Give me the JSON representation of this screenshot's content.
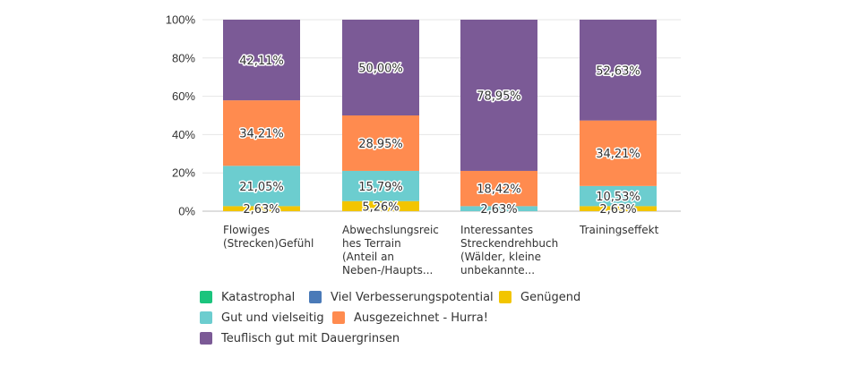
{
  "chart_data": {
    "type": "bar",
    "stacked": true,
    "categories": [
      [
        "Flowiges",
        "(Strecken)Gefühl"
      ],
      [
        "Abwechslungsreic",
        "hes Terrain",
        "(Anteil an",
        "Neben-/Haupts..."
      ],
      [
        "Interessantes",
        "Streckendrehbuch",
        "(Wälder, kleine",
        "unbekannte..."
      ],
      [
        "Trainingseffekt"
      ]
    ],
    "y_ticks": [
      "0%",
      "20%",
      "40%",
      "60%",
      "80%",
      "100%"
    ],
    "ylim": [
      0,
      100
    ],
    "grid": true,
    "legend_position": "bottom",
    "series": [
      {
        "name": "Katastrophal",
        "color": "#1bc47d",
        "values": [
          0,
          0,
          0,
          0
        ],
        "labels": [
          "",
          "",
          "",
          ""
        ]
      },
      {
        "name": "Viel Verbesserungspotential",
        "color": "#4a7ab8",
        "values": [
          0,
          0,
          0,
          0
        ],
        "labels": [
          "",
          "",
          "",
          ""
        ]
      },
      {
        "name": "Genügend",
        "color": "#f2c500",
        "values": [
          2.63,
          5.26,
          0,
          2.63
        ],
        "labels": [
          "2,63%",
          "5,26%",
          "",
          "2,63%"
        ]
      },
      {
        "name": "Gut und vielseitig",
        "color": "#6ccdcf",
        "values": [
          21.05,
          15.79,
          2.63,
          10.53
        ],
        "labels": [
          "21,05%",
          "15,79%",
          "2,63%",
          "10,53%"
        ]
      },
      {
        "name": "Ausgezeichnet - Hurra!",
        "color": "#ff8b4f",
        "values": [
          34.21,
          28.95,
          18.42,
          34.21
        ],
        "labels": [
          "34,21%",
          "28,95%",
          "18,42%",
          "34,21%"
        ]
      },
      {
        "name": "Teuflisch gut mit Dauergrinsen",
        "color": "#7b5a96",
        "values": [
          42.11,
          50.0,
          78.95,
          52.63
        ],
        "labels": [
          "42,11%",
          "50,00%",
          "78,95%",
          "52,63%"
        ]
      }
    ]
  }
}
